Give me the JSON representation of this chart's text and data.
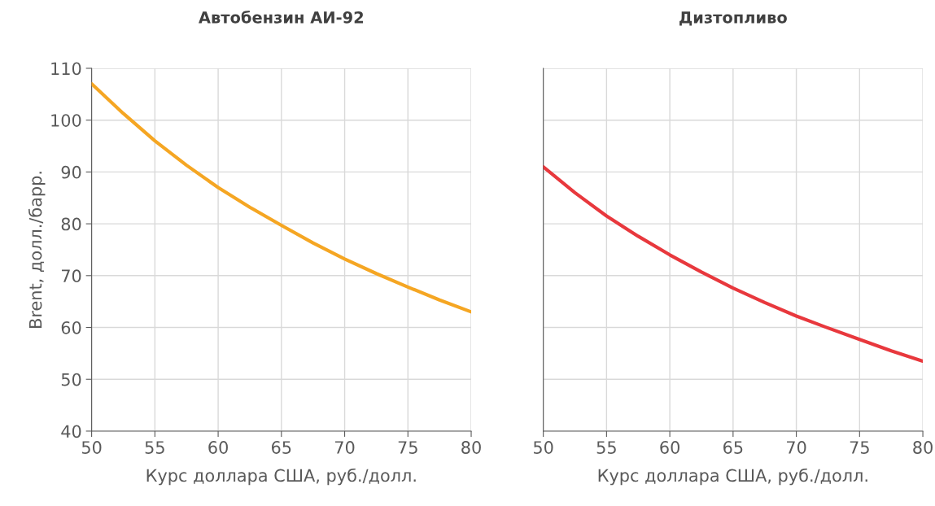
{
  "chart_data": [
    {
      "type": "line",
      "title": "Автобензин АИ-92",
      "xlabel": "Курс доллара США, руб./долл.",
      "ylabel": "Brent, долл./барр.",
      "x": [
        50,
        52.5,
        55,
        57.5,
        60,
        62.5,
        65,
        67.5,
        70,
        72.5,
        75,
        77.5,
        80
      ],
      "series": [
        {
          "color": "#f5a623",
          "values": [
            107,
            101.3,
            96,
            91.3,
            87,
            83.2,
            79.7,
            76.3,
            73.2,
            70.4,
            67.8,
            65.3,
            63
          ]
        }
      ],
      "xlim": [
        50,
        80
      ],
      "xticks": [
        50,
        55,
        60,
        65,
        70,
        75,
        80
      ],
      "ylim": [
        40,
        110
      ],
      "yticks": [
        40,
        50,
        60,
        70,
        80,
        90,
        100,
        110
      ],
      "grid": true,
      "marker": "none",
      "line_style": "solid"
    },
    {
      "type": "line",
      "title": "Дизтопливо",
      "xlabel": "Курс доллара США, руб./долл.",
      "x": [
        50,
        52.5,
        55,
        57.5,
        60,
        62.5,
        65,
        67.5,
        70,
        72.5,
        75,
        77.5,
        80
      ],
      "series": [
        {
          "color": "#e8383d",
          "values": [
            91,
            86,
            81.5,
            77.6,
            74,
            70.7,
            67.6,
            64.8,
            62.2,
            59.9,
            57.7,
            55.5,
            53.5
          ]
        }
      ],
      "xlim": [
        50,
        80
      ],
      "xticks": [
        50,
        55,
        60,
        65,
        70,
        75,
        80
      ],
      "ylim": [
        40,
        110
      ],
      "yticks": [
        40,
        50,
        60,
        70,
        80,
        90,
        100,
        110
      ],
      "grid": true,
      "marker": "none",
      "line_style": "solid",
      "tick_labels": "x"
    }
  ]
}
